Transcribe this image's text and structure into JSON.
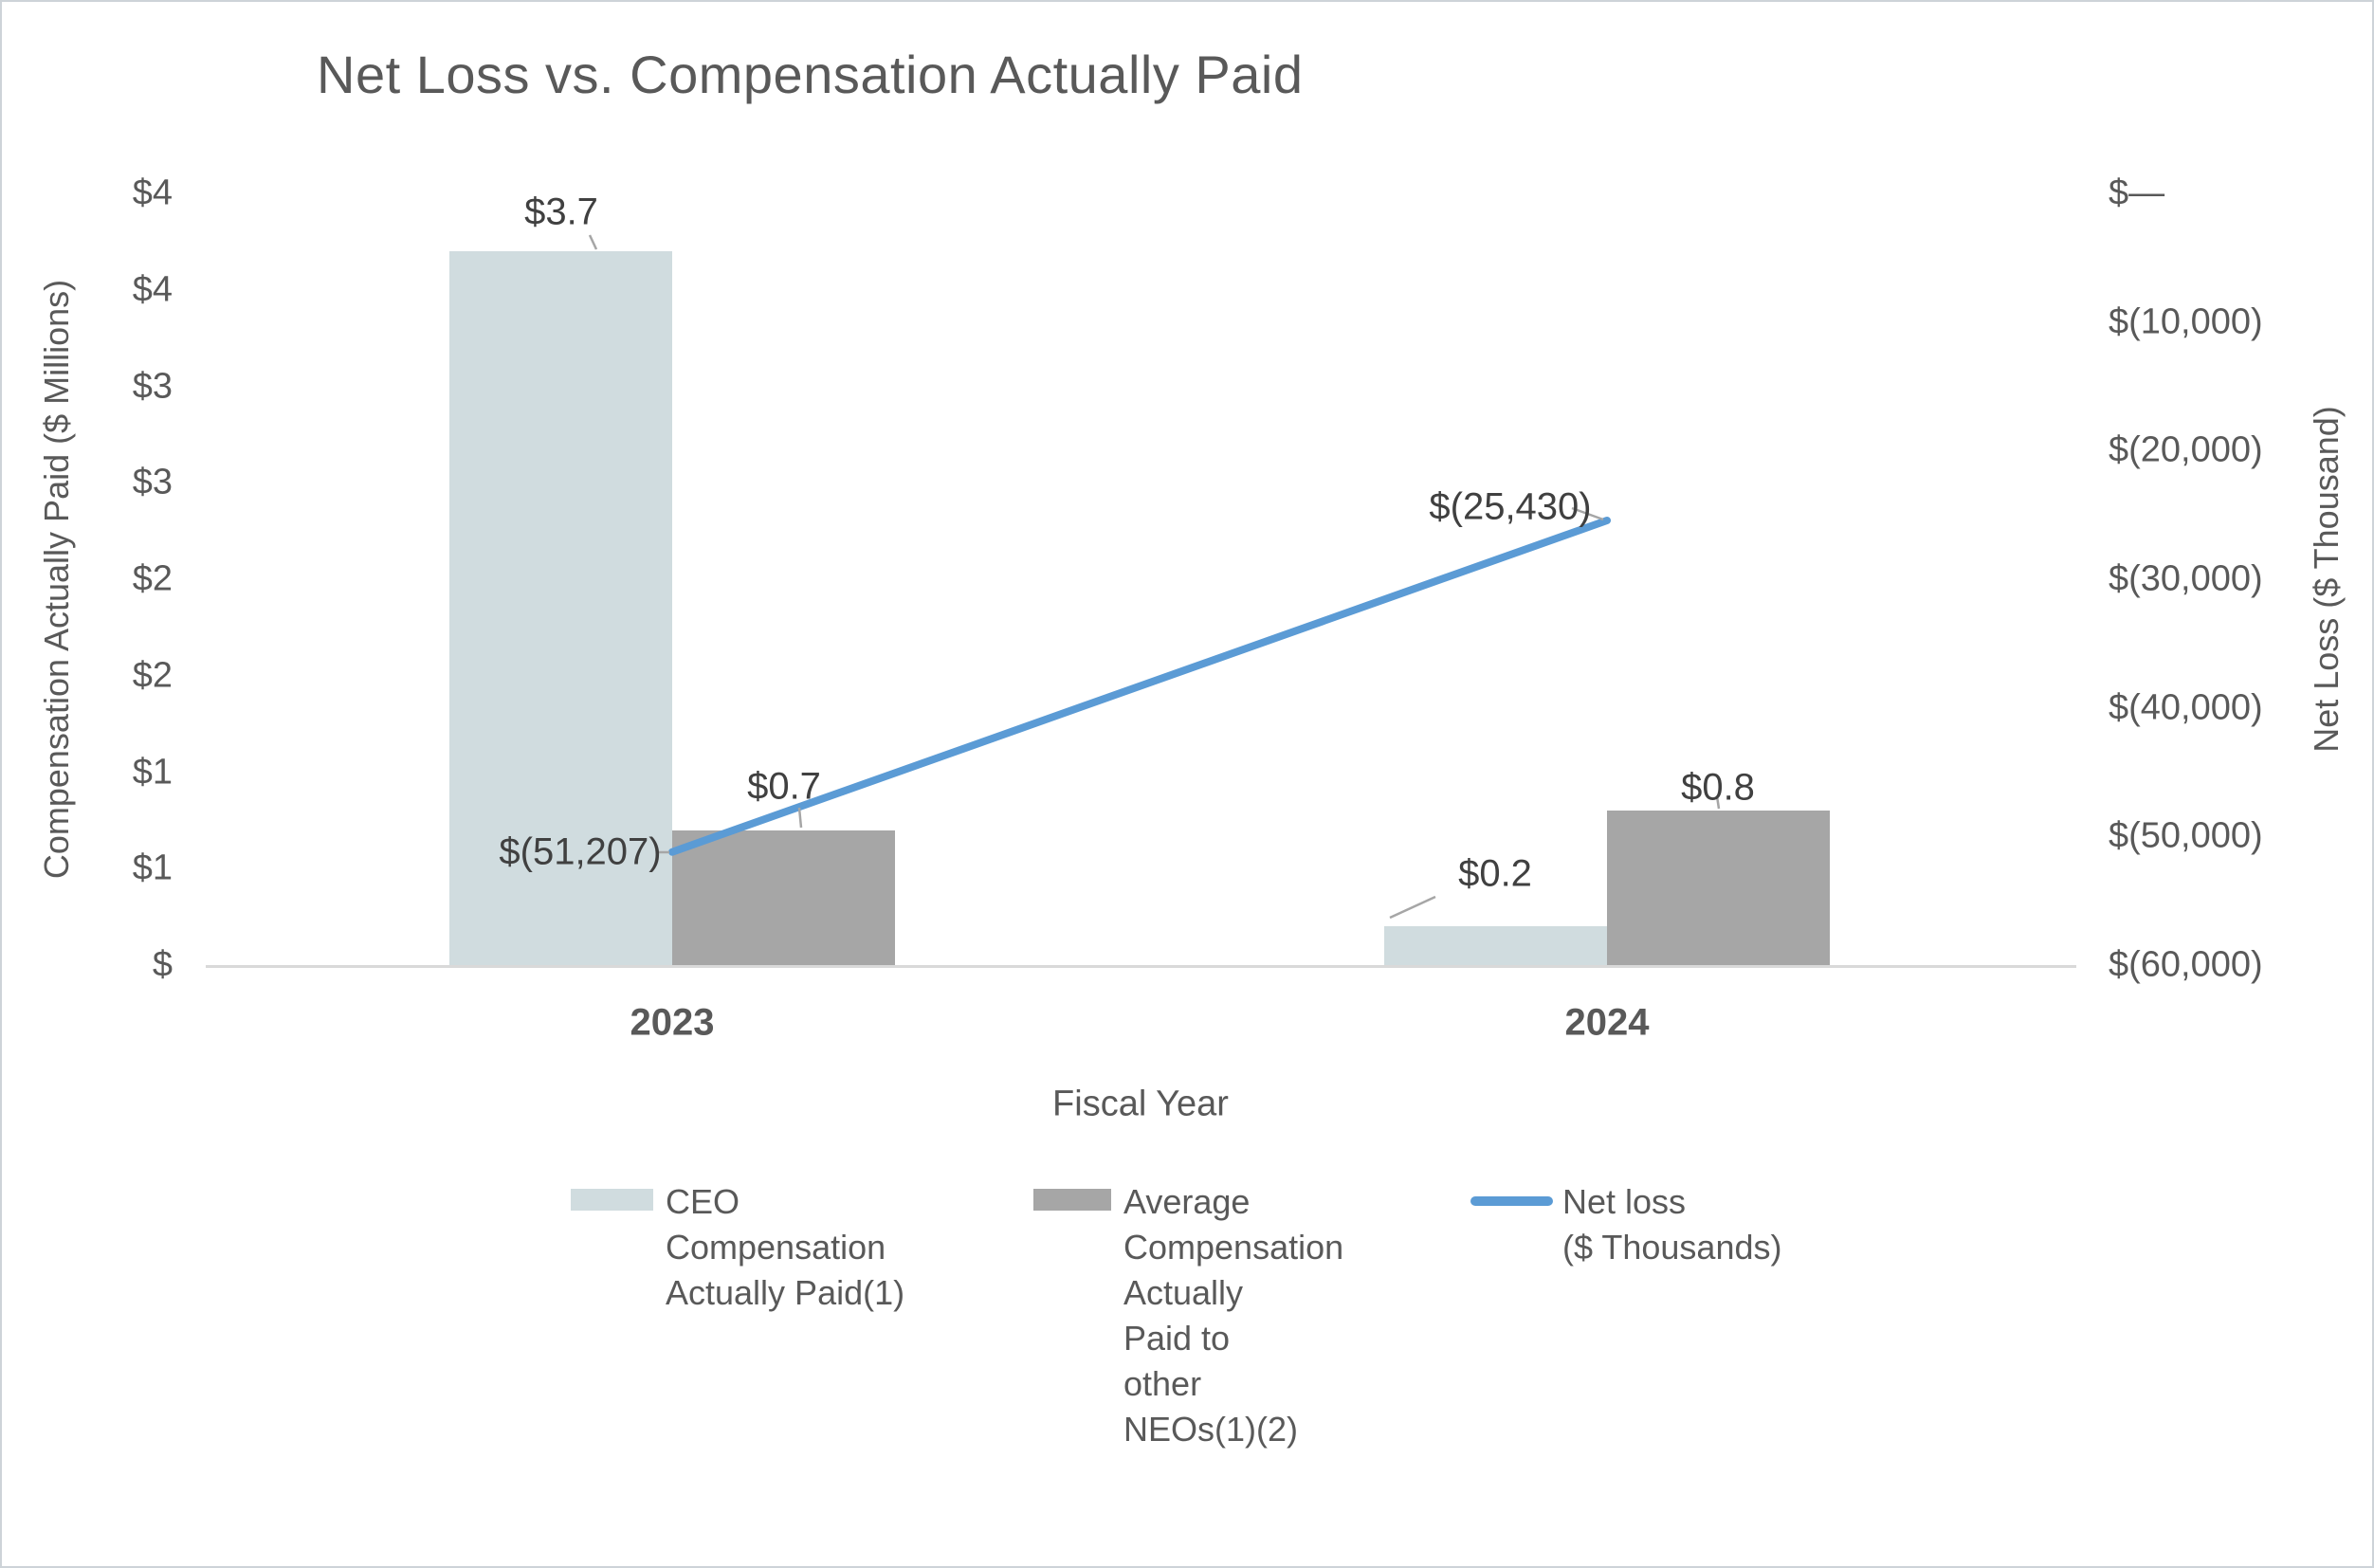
{
  "chart_data": {
    "type": "bar+line",
    "title": "Net Loss vs. Compensation Actually Paid",
    "categories": [
      "2023",
      "2024"
    ],
    "series": [
      {
        "name": "CEO Compensation Actually Paid(1)",
        "type": "bar",
        "axis": "left",
        "values_millions": [
          3.7,
          0.2
        ],
        "labels": [
          "$3.7",
          "$0.2"
        ],
        "color": "#D0DCDF"
      },
      {
        "name": "Average Compensation Actually Paid to other NEOs(1)(2)",
        "type": "bar",
        "axis": "left",
        "values_millions": [
          0.7,
          0.8
        ],
        "labels": [
          "$0.7",
          "$0.8"
        ],
        "color": "#A6A6A6"
      },
      {
        "name": "Net loss ($ Thousands)",
        "type": "line",
        "axis": "right",
        "values_thousands": [
          -51207,
          -25430
        ],
        "labels": [
          "$(51,207)",
          "$(25,430)"
        ],
        "color": "#5B9BD5"
      }
    ],
    "x_axis": {
      "title": "Fiscal Year"
    },
    "left_axis": {
      "title": "Compensation Actually Paid ($ Millions)",
      "min": 0,
      "max": 4,
      "tick_step": 0.5,
      "tick_labels_top_to_bottom": [
        "$4",
        "$4",
        "$3",
        "$3",
        "$2",
        "$2",
        "$1",
        "$1",
        "$"
      ]
    },
    "right_axis": {
      "title": "Net Loss ($ Thousand)",
      "min": -60000,
      "max": 0,
      "tick_step": 10000,
      "tick_labels_top_to_bottom": [
        "$—",
        "$(10,000)",
        "$(20,000)",
        "$(30,000)",
        "$(40,000)",
        "$(50,000)",
        "$(60,000)"
      ]
    },
    "legend": [
      {
        "label": "CEO\nCompensation\nActually Paid(1)",
        "swatch": "bar",
        "color": "#D0DCDF"
      },
      {
        "label": "Average\nCompensation\nActually\nPaid to\nother\nNEOs(1)(2)",
        "swatch": "bar",
        "color": "#A6A6A6"
      },
      {
        "label": "Net loss\n($ Thousands)",
        "swatch": "line",
        "color": "#5B9BD5"
      }
    ],
    "colors": {
      "ceo_bar": "#D0DCDF",
      "neo_bar": "#A6A6A6",
      "net_loss_line": "#5B9BD5",
      "axis_line": "#D9D9D9",
      "tick_text": "#595959",
      "data_label_text": "#404040",
      "leader_line": "#A6A6A6"
    },
    "grid": "off",
    "legend_position": "bottom"
  }
}
